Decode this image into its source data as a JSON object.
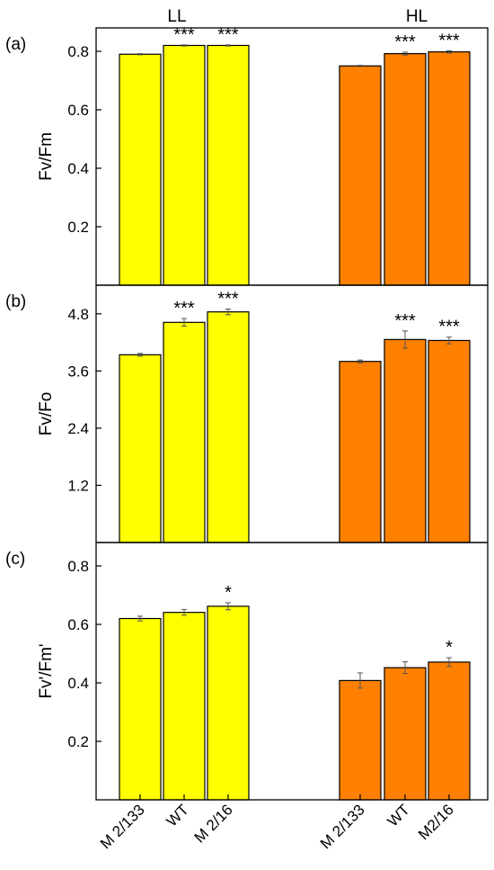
{
  "figure": {
    "group_labels": [
      "LL",
      "HL"
    ],
    "categories": [
      "M 2/133",
      "WT",
      "M 2/16",
      "M 2/133",
      "WT",
      "M2/16"
    ]
  },
  "colors": {
    "LL": "#ffff00",
    "HL": "#ff8000",
    "axis": "#000000",
    "error_bar": "#555555"
  },
  "chart_data": [
    {
      "type": "bar",
      "panel_label": "(a)",
      "ylabel": "Fv/Fm",
      "ylim": [
        0.0,
        0.88
      ],
      "yticks": [
        0.2,
        0.4,
        0.6,
        0.8
      ],
      "ytick_labels": [
        "0.2",
        "0.4",
        "0.6",
        "0.8"
      ],
      "categories": [
        "M 2/133",
        "WT",
        "M 2/16",
        "M 2/133",
        "WT",
        "M2/16"
      ],
      "groups": [
        "LL",
        "LL",
        "LL",
        "HL",
        "HL",
        "HL"
      ],
      "values": [
        0.79,
        0.82,
        0.82,
        0.75,
        0.792,
        0.798
      ],
      "errors": [
        0.002,
        0.002,
        0.002,
        0.002,
        0.005,
        0.004
      ],
      "significance": [
        "",
        "***",
        "***",
        "",
        "***",
        "***"
      ]
    },
    {
      "type": "bar",
      "panel_label": "(b)",
      "ylabel": "Fv/Fo",
      "ylim": [
        0.0,
        5.4
      ],
      "yticks": [
        1.2,
        2.4,
        3.6,
        4.8
      ],
      "ytick_labels": [
        "1.2",
        "2.4",
        "3.6",
        "4.8"
      ],
      "categories": [
        "M 2/133",
        "WT",
        "M 2/16",
        "M 2/133",
        "WT",
        "M2/16"
      ],
      "groups": [
        "LL",
        "LL",
        "LL",
        "HL",
        "HL",
        "HL"
      ],
      "values": [
        3.94,
        4.62,
        4.84,
        3.8,
        4.26,
        4.24
      ],
      "errors": [
        0.03,
        0.08,
        0.06,
        0.03,
        0.18,
        0.07
      ],
      "significance": [
        "",
        "***",
        "***",
        "",
        "***",
        "***"
      ]
    },
    {
      "type": "bar",
      "panel_label": "(c)",
      "ylabel": "Fv'/Fm'",
      "ylim": [
        0.0,
        0.88
      ],
      "yticks": [
        0.2,
        0.4,
        0.6,
        0.8
      ],
      "ytick_labels": [
        "0.2",
        "0.4",
        "0.6",
        "0.8"
      ],
      "categories": [
        "M 2/133",
        "WT",
        "M 2/16",
        "M 2/133",
        "WT",
        "M2/16"
      ],
      "groups": [
        "LL",
        "LL",
        "LL",
        "HL",
        "HL",
        "HL"
      ],
      "values": [
        0.62,
        0.641,
        0.662,
        0.408,
        0.452,
        0.471
      ],
      "errors": [
        0.008,
        0.01,
        0.012,
        0.026,
        0.02,
        0.015
      ],
      "significance": [
        "",
        "",
        "*",
        "",
        "",
        "*"
      ]
    }
  ]
}
